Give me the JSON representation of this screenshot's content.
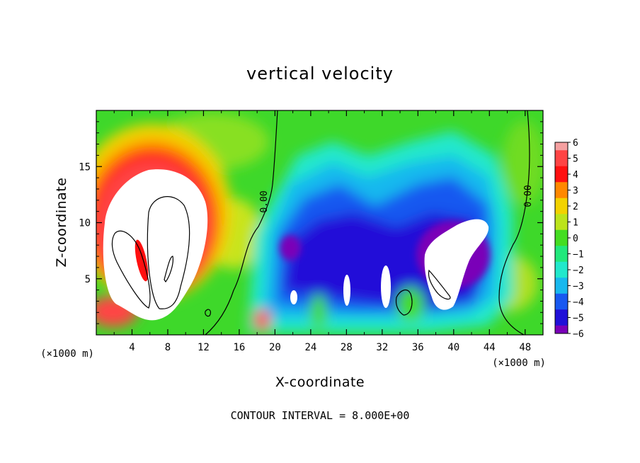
{
  "chart_data": {
    "type": "heatmap",
    "title": "vertical velocity",
    "xlabel": "X-coordinate",
    "ylabel": "Z-coordinate",
    "x_unit": "(×1000 m)",
    "y_unit": "(×1000 m)",
    "xlim": [
      0,
      50
    ],
    "ylim": [
      0,
      20
    ],
    "xticks": [
      "4",
      "8",
      "12",
      "16",
      "20",
      "24",
      "28",
      "32",
      "36",
      "40",
      "44",
      "48"
    ],
    "yticks": [
      "5",
      "10",
      "15"
    ],
    "colorbar": {
      "labels": [
        "6",
        "5",
        "4",
        "3",
        "2",
        "1",
        "0",
        "−1",
        "−2",
        "−3",
        "−4",
        "−5",
        "−6"
      ],
      "colors": [
        "#f5a0a0",
        "#ff4444",
        "#ff1010",
        "#ff8800",
        "#f2d200",
        "#bce41c",
        "#44dd22",
        "#22e87c",
        "#22e8cc",
        "#18b8ee",
        "#1858f0",
        "#2010d8",
        "#7a00b8"
      ]
    },
    "contour_labels": [
      "0.00",
      "0.00"
    ],
    "footer": "CONTOUR INTERVAL = 8.000E+00"
  }
}
